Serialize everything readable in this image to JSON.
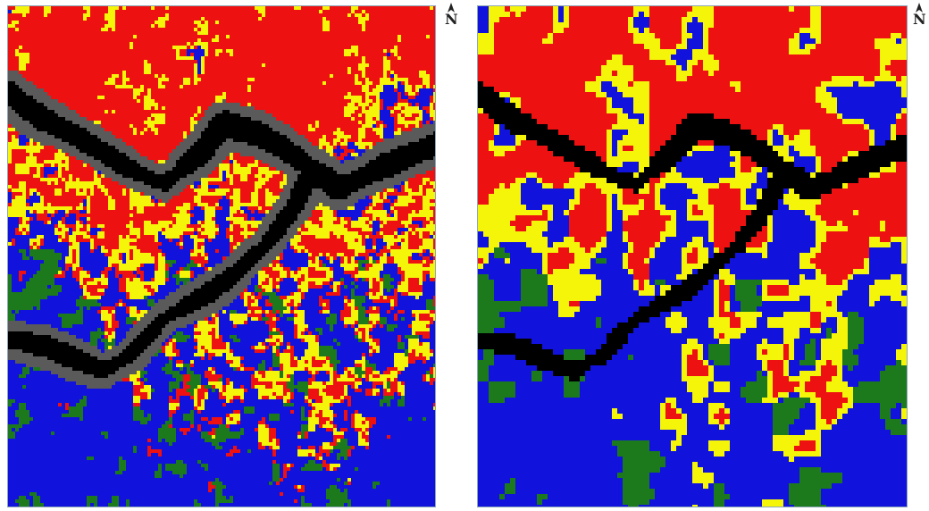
{
  "north_arrow": {
    "label": "N"
  },
  "map_left": {
    "variant": "raw"
  },
  "map_right": {
    "variant": "smoothed"
  },
  "palette": {
    "water": "#000000",
    "class_blue": "#1212dd",
    "class_red": "#ee1111",
    "class_yellow": "#f5f50a",
    "class_green": "#1c7a1c",
    "shadow_gray": "#5a5a5a",
    "frame": "#8ea7b8"
  }
}
